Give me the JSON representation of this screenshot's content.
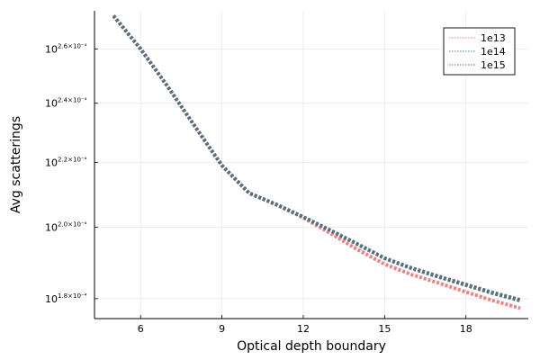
{
  "chart_data": {
    "type": "line",
    "title": "",
    "xlabel": "Optical depth boundary",
    "ylabel": "Avg scatterings",
    "xlim": [
      4.3,
      20.3
    ],
    "ylim": [
      1.748,
      2.75
    ],
    "xticks": [
      6,
      9,
      12,
      15,
      18
    ],
    "yscale": "log10",
    "yticks": [
      {
        "value": 1.8,
        "base": "10",
        "exp": "1.8×10⁻⁴"
      },
      {
        "value": 2.0,
        "base": "10",
        "exp": "2.0×10⁻⁴"
      },
      {
        "value": 2.2,
        "base": "10",
        "exp": "2.2×10⁻⁴"
      },
      {
        "value": 2.4,
        "base": "10",
        "exp": "2.4×10⁻⁴"
      },
      {
        "value": 2.6,
        "base": "10",
        "exp": "2.6×10⁻⁴"
      }
    ],
    "grid": true,
    "legend_position": "top-right",
    "x": [
      5,
      6,
      7,
      8,
      9,
      10,
      11,
      12,
      13,
      14,
      15,
      16,
      17,
      18,
      19,
      20
    ],
    "series": [
      {
        "name": "1e13",
        "color": "#f08080",
        "values": [
          2.73,
          2.6,
          2.46,
          2.32,
          2.19,
          2.103,
          2.067,
          2.028,
          1.982,
          1.935,
          1.894,
          1.865,
          1.842,
          1.818,
          1.795,
          1.775
        ]
      },
      {
        "name": "1e14",
        "color": "#4e8383",
        "values": [
          2.73,
          2.6,
          2.46,
          2.32,
          2.19,
          2.103,
          2.068,
          2.03,
          1.99,
          1.95,
          1.91,
          1.882,
          1.858,
          1.836,
          1.814,
          1.795
        ]
      },
      {
        "name": "1e15",
        "color": "#5a6f7e",
        "values": [
          2.73,
          2.6,
          2.46,
          2.32,
          2.19,
          2.103,
          2.068,
          2.03,
          1.991,
          1.951,
          1.911,
          1.883,
          1.86,
          1.838,
          1.816,
          1.797
        ]
      }
    ]
  }
}
